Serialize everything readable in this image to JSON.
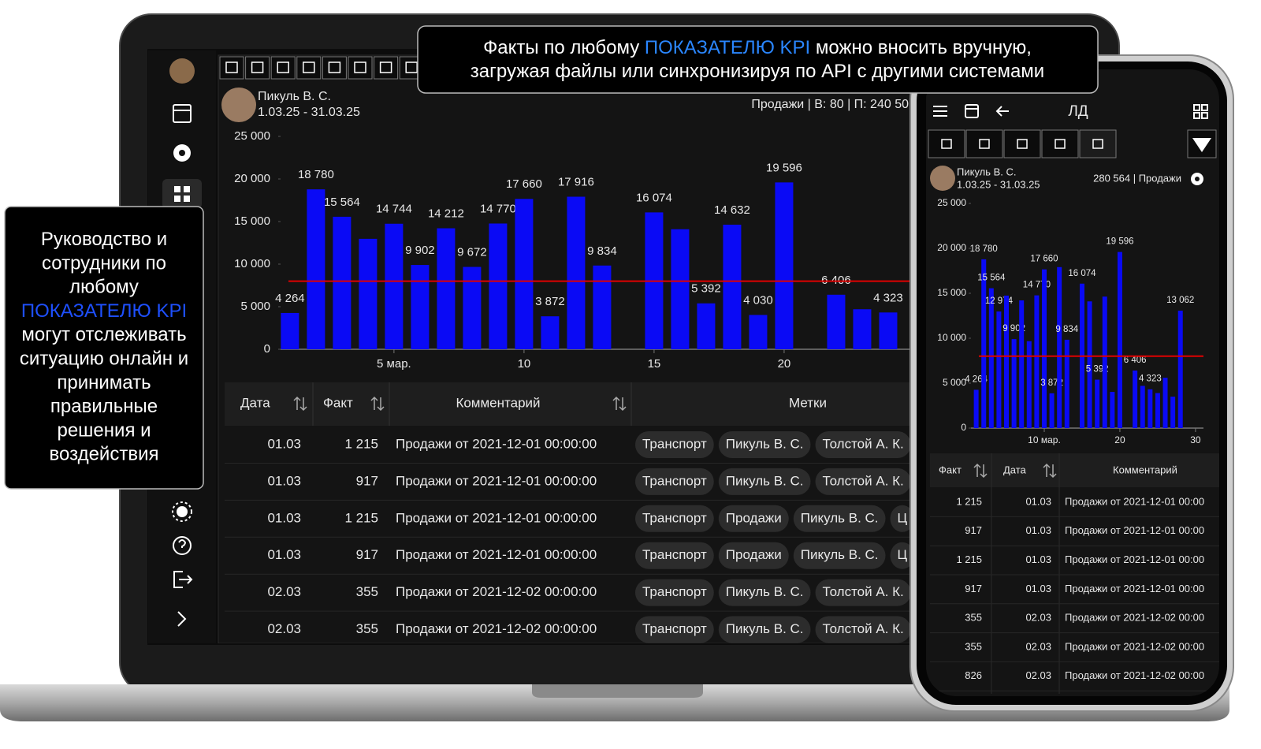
{
  "callouts": {
    "top": {
      "lines": [
        [
          {
            "text": "Факты по любому "
          },
          {
            "text": "ПОКАЗАТЕЛЮ KPI",
            "color": "#2a86ff"
          },
          {
            "text": " можно вносить вручную,"
          }
        ],
        [
          {
            "text": "загружая файлы или синхронизируя по API с другими системами"
          }
        ]
      ]
    },
    "left": {
      "lines": [
        [
          {
            "text": "Руководство и"
          }
        ],
        [
          {
            "text": "сотрудники по"
          }
        ],
        [
          {
            "text": "любому"
          }
        ],
        [
          {
            "text": "ПОКАЗАТЕЛЮ KPI",
            "color": "#1e50ff"
          }
        ],
        [
          {
            "text": "могут отслеживать"
          }
        ],
        [
          {
            "text": "ситуацию онлайн и"
          }
        ],
        [
          {
            "text": "принимать"
          }
        ],
        [
          {
            "text": "правильные"
          }
        ],
        [
          {
            "text": "решения и"
          }
        ],
        [
          {
            "text": "воздействия"
          }
        ]
      ]
    }
  },
  "laptop": {
    "user": {
      "name": "Пикуль В. С.",
      "period": "1.03.25 - 31.03.25"
    },
    "summary": "Продажи | В: 80 | П: 240 50",
    "chart": {
      "type": "bar",
      "x": [
        1,
        2,
        3,
        4,
        5,
        6,
        7,
        8,
        9,
        10,
        11,
        12,
        13,
        14,
        15,
        16,
        17,
        18,
        19,
        20,
        21,
        22,
        23,
        24
      ],
      "values": [
        4264,
        18780,
        15564,
        12974,
        14744,
        9902,
        14212,
        9672,
        14770,
        17660,
        3872,
        17916,
        9834,
        null,
        16074,
        14100,
        5392,
        14632,
        4030,
        19596,
        null,
        6406,
        4700,
        4323
      ],
      "value_labels": [
        "4 264",
        "18 780",
        "15 564",
        null,
        "14 744",
        "9 902",
        "14 212",
        "9 672",
        "14 770",
        "17 660",
        "3 872",
        "17 916",
        "9 834",
        null,
        "16 074",
        null,
        "5 392",
        "14 632",
        "4 030",
        "19 596",
        null,
        "6 406",
        null,
        "4 323"
      ],
      "color": "#0a0af5",
      "target": 8000,
      "target_color": "#e00000",
      "xlim": [
        0.64,
        24.85
      ],
      "ylim": [
        0,
        25000
      ],
      "yticks": [
        0,
        {
          "value": 5000,
          "label": "5 000"
        },
        {
          "value": 10000,
          "label": "10 000"
        },
        {
          "value": 15000,
          "label": "15 000"
        },
        {
          "value": 20000,
          "label": "20 000"
        },
        {
          "value": 25000,
          "label": "25 000"
        }
      ],
      "xticks": [
        {
          "value": 5,
          "label": "5 мар."
        },
        10,
        15,
        20
      ]
    },
    "table": {
      "columns": [
        "Дата",
        "Факт",
        "Комментарий",
        "Метки"
      ],
      "rows": [
        [
          "01.03",
          "1 215",
          "Продажи от 2021-12-01 00:00:00",
          [
            "Транспорт",
            "Пикуль В. С.",
            "Толстой А. К."
          ]
        ],
        [
          "01.03",
          "917",
          "Продажи от 2021-12-01 00:00:00",
          [
            "Транспорт",
            "Пикуль В. С.",
            "Толстой А. К."
          ]
        ],
        [
          "01.03",
          "1 215",
          "Продажи от 2021-12-01 00:00:00",
          [
            "Транспорт",
            "Продажи",
            "Пикуль В. С.",
            "Ц"
          ]
        ],
        [
          "01.03",
          "917",
          "Продажи от 2021-12-01 00:00:00",
          [
            "Транспорт",
            "Продажи",
            "Пикуль В. С.",
            "Ц"
          ]
        ],
        [
          "02.03",
          "355",
          "Продажи от 2021-12-02 00:00:00",
          [
            "Транспорт",
            "Пикуль В. С.",
            "Толстой А. К."
          ]
        ],
        [
          "02.03",
          "355",
          "Продажи от 2021-12-02 00:00:00",
          [
            "Транспорт",
            "Пикуль В. С.",
            "Толстой А. К."
          ]
        ]
      ]
    }
  },
  "phone": {
    "title": "ЛД",
    "user": {
      "name": "Пикуль В. С.",
      "period": "1.03.25 - 31.03.25"
    },
    "summary": "280 564 | Продажи",
    "chart": {
      "type": "bar",
      "x": [
        1,
        2,
        3,
        4,
        5,
        6,
        7,
        8,
        9,
        10,
        11,
        12,
        13,
        14,
        15,
        16,
        17,
        18,
        19,
        20,
        21,
        22,
        23,
        24,
        25,
        26,
        27,
        28
      ],
      "values": [
        4264,
        18780,
        15564,
        12974,
        14744,
        9902,
        14212,
        9672,
        14770,
        17660,
        3872,
        17916,
        9834,
        null,
        16074,
        14100,
        5392,
        14632,
        4030,
        19596,
        null,
        6406,
        4700,
        4323,
        3900,
        5600,
        3500,
        13062
      ],
      "value_labels": [
        "4 264",
        "18 780",
        "15 564",
        "12 974",
        null,
        "9 902",
        null,
        null,
        "14 770",
        "17 660",
        "3 872",
        null,
        "9 834",
        null,
        "16 074",
        null,
        "5 392",
        null,
        null,
        "19 596",
        null,
        "6 406",
        null,
        "4 323",
        null,
        null,
        null,
        "13 062"
      ],
      "color": "#0a0af5",
      "target": 8000,
      "target_color": "#e00000",
      "xlim": [
        0.31,
        31.05
      ],
      "ylim": [
        0,
        25000
      ],
      "yticks": [
        0,
        {
          "value": 5000,
          "label": "5 000"
        },
        {
          "value": 10000,
          "label": "10 000"
        },
        {
          "value": 15000,
          "label": "15 000"
        },
        {
          "value": 20000,
          "label": "20 000"
        },
        {
          "value": 25000,
          "label": "25 000"
        }
      ],
      "xticks": [
        {
          "value": 10,
          "label": "10 мар."
        },
        20,
        30
      ]
    },
    "table": {
      "columns": [
        "Факт",
        "Дата",
        "Комментарий"
      ],
      "rows": [
        [
          "1 215",
          "01.03",
          "Продажи от 2021-12-01 00:00"
        ],
        [
          "917",
          "01.03",
          "Продажи от 2021-12-01 00:00"
        ],
        [
          "1 215",
          "01.03",
          "Продажи от 2021-12-01 00:00"
        ],
        [
          "917",
          "01.03",
          "Продажи от 2021-12-01 00:00"
        ],
        [
          "355",
          "02.03",
          "Продажи от 2021-12-02 00:00"
        ],
        [
          "355",
          "02.03",
          "Продажи от 2021-12-02 00:00"
        ],
        [
          "826",
          "02.03",
          "Продажи от 2021-12-02 00:00"
        ]
      ]
    }
  }
}
